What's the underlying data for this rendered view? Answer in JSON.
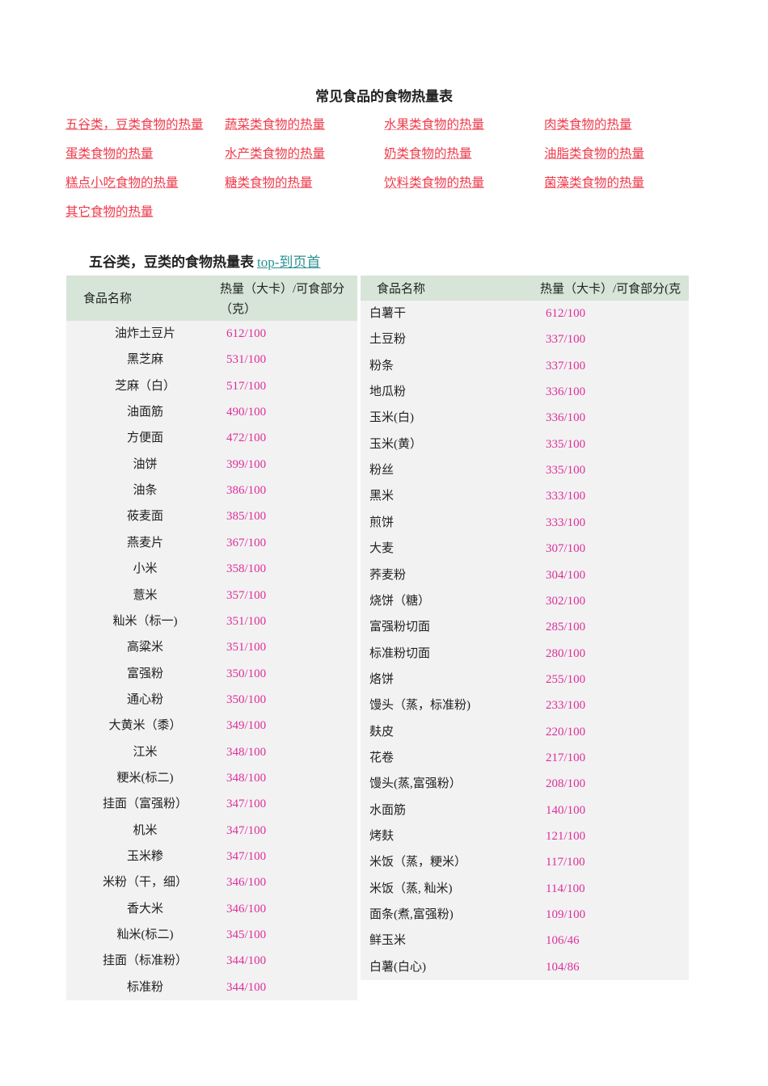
{
  "title": "常见食品的食物热量表",
  "nav_links": [
    "五谷类，豆类食物的热量",
    "蔬菜类食物的热量",
    "水果类食物的热量",
    "肉类食物的热量",
    "蛋类食物的热量",
    "水产类食物的热量",
    "奶类食物的热量",
    "油脂类食物的热量",
    "糕点小吃食物的热量",
    "糖类食物的热量",
    "饮料类食物的热量",
    "菌藻类食物的热量",
    "其它食物的热量"
  ],
  "section": {
    "title": "五谷类，豆类的食物热量表",
    "top_link": "top-到页首"
  },
  "colors": {
    "link": "#ee3a4a",
    "value": "#dd2e9a",
    "header_bg": "#d6e5d7",
    "row_bg": "#f2f2f2"
  },
  "left_table": {
    "headers": {
      "name": "食品名称",
      "calories_line1": "热量（大卡）/可食部分",
      "calories_line2": "（克）"
    },
    "rows": [
      [
        "油炸土豆片",
        "612/100"
      ],
      [
        "黑芝麻",
        "531/100"
      ],
      [
        "芝麻（白）",
        "517/100"
      ],
      [
        "油面筋",
        "490/100"
      ],
      [
        "方便面",
        "472/100"
      ],
      [
        "油饼",
        "399/100"
      ],
      [
        "油条",
        "386/100"
      ],
      [
        "莜麦面",
        "385/100"
      ],
      [
        "燕麦片",
        "367/100"
      ],
      [
        "小米",
        "358/100"
      ],
      [
        "薏米",
        "357/100"
      ],
      [
        "籼米（标一)",
        "351/100"
      ],
      [
        "高粱米",
        "351/100"
      ],
      [
        "富强粉",
        "350/100"
      ],
      [
        "通心粉",
        "350/100"
      ],
      [
        "大黄米（黍）",
        "349/100"
      ],
      [
        "江米",
        "348/100"
      ],
      [
        "粳米(标二)",
        "348/100"
      ],
      [
        "挂面（富强粉）",
        "347/100"
      ],
      [
        "机米",
        "347/100"
      ],
      [
        "玉米糁",
        "347/100"
      ],
      [
        "米粉（干，细）",
        "346/100"
      ],
      [
        "香大米",
        "346/100"
      ],
      [
        "籼米(标二)",
        "345/100"
      ],
      [
        "挂面（标准粉）",
        "344/100"
      ],
      [
        "标准粉",
        "344/100"
      ]
    ]
  },
  "right_table": {
    "headers": {
      "name": "食品名称",
      "calories": "热量（大卡）/可食部分(克"
    },
    "rows": [
      [
        "白薯干",
        "612/100"
      ],
      [
        "土豆粉",
        "337/100"
      ],
      [
        "粉条",
        "337/100"
      ],
      [
        "地瓜粉",
        "336/100"
      ],
      [
        "玉米(白)",
        "336/100"
      ],
      [
        "玉米(黄）",
        "335/100"
      ],
      [
        "粉丝",
        "335/100"
      ],
      [
        "黑米",
        "333/100"
      ],
      [
        "煎饼",
        "333/100"
      ],
      [
        "大麦",
        "307/100"
      ],
      [
        "荞麦粉",
        "304/100"
      ],
      [
        "烧饼（糖）",
        "302/100"
      ],
      [
        "富强粉切面",
        "285/100"
      ],
      [
        "标准粉切面",
        "280/100"
      ],
      [
        "烙饼",
        "255/100"
      ],
      [
        "馒头（蒸，标准粉)",
        "233/100"
      ],
      [
        "麸皮",
        "220/100"
      ],
      [
        "花卷",
        "217/100"
      ],
      [
        "馒头(蒸,富强粉）",
        "208/100"
      ],
      [
        "水面筋",
        "140/100"
      ],
      [
        "烤麸",
        "121/100"
      ],
      [
        "米饭（蒸，粳米）",
        "117/100"
      ],
      [
        "米饭（蒸, 籼米)",
        "114/100"
      ],
      [
        "面条(煮,富强粉)",
        "109/100"
      ],
      [
        "鲜玉米",
        "106/46"
      ],
      [
        "白薯(白心)",
        "104/86"
      ]
    ]
  }
}
